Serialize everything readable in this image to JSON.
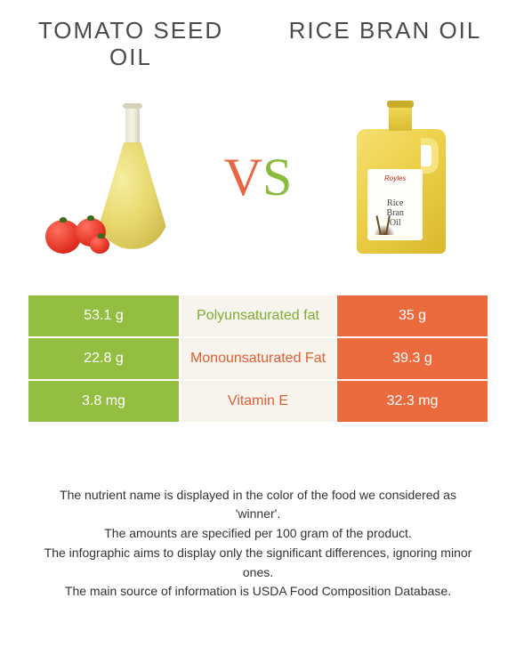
{
  "left": {
    "title": "TOMATO SEED OIL",
    "color": "#94be42"
  },
  "right": {
    "title": "RICE BRAN OIL",
    "color": "#ec6b3e"
  },
  "vs": {
    "v": "V",
    "s": "S"
  },
  "table": {
    "rows": [
      {
        "left": "53.1 g",
        "label": "Polyunsaturated fat",
        "right": "35 g",
        "winner": "left"
      },
      {
        "left": "22.8 g",
        "label": "Monounsaturated Fat",
        "right": "39.3 g",
        "winner": "right"
      },
      {
        "left": "3.8 mg",
        "label": "Vitamin E",
        "right": "32.3 mg",
        "winner": "right"
      }
    ],
    "mid_bg": "#f7f4ee",
    "mid_color_left": "#7fab34",
    "mid_color_right": "#e05f33"
  },
  "bottle_label": {
    "brand": "Royles",
    "name_line1": "Rice",
    "name_line2": "Bran",
    "name_line3": "Oil"
  },
  "footer": {
    "l1": "The nutrient name is displayed in the color of the food we considered as 'winner'.",
    "l2": "The amounts are specified per 100 gram of the product.",
    "l3": "The infographic aims to display only the significant differences, ignoring minor ones.",
    "l4": "The main source of information is USDA Food Composition Database."
  }
}
